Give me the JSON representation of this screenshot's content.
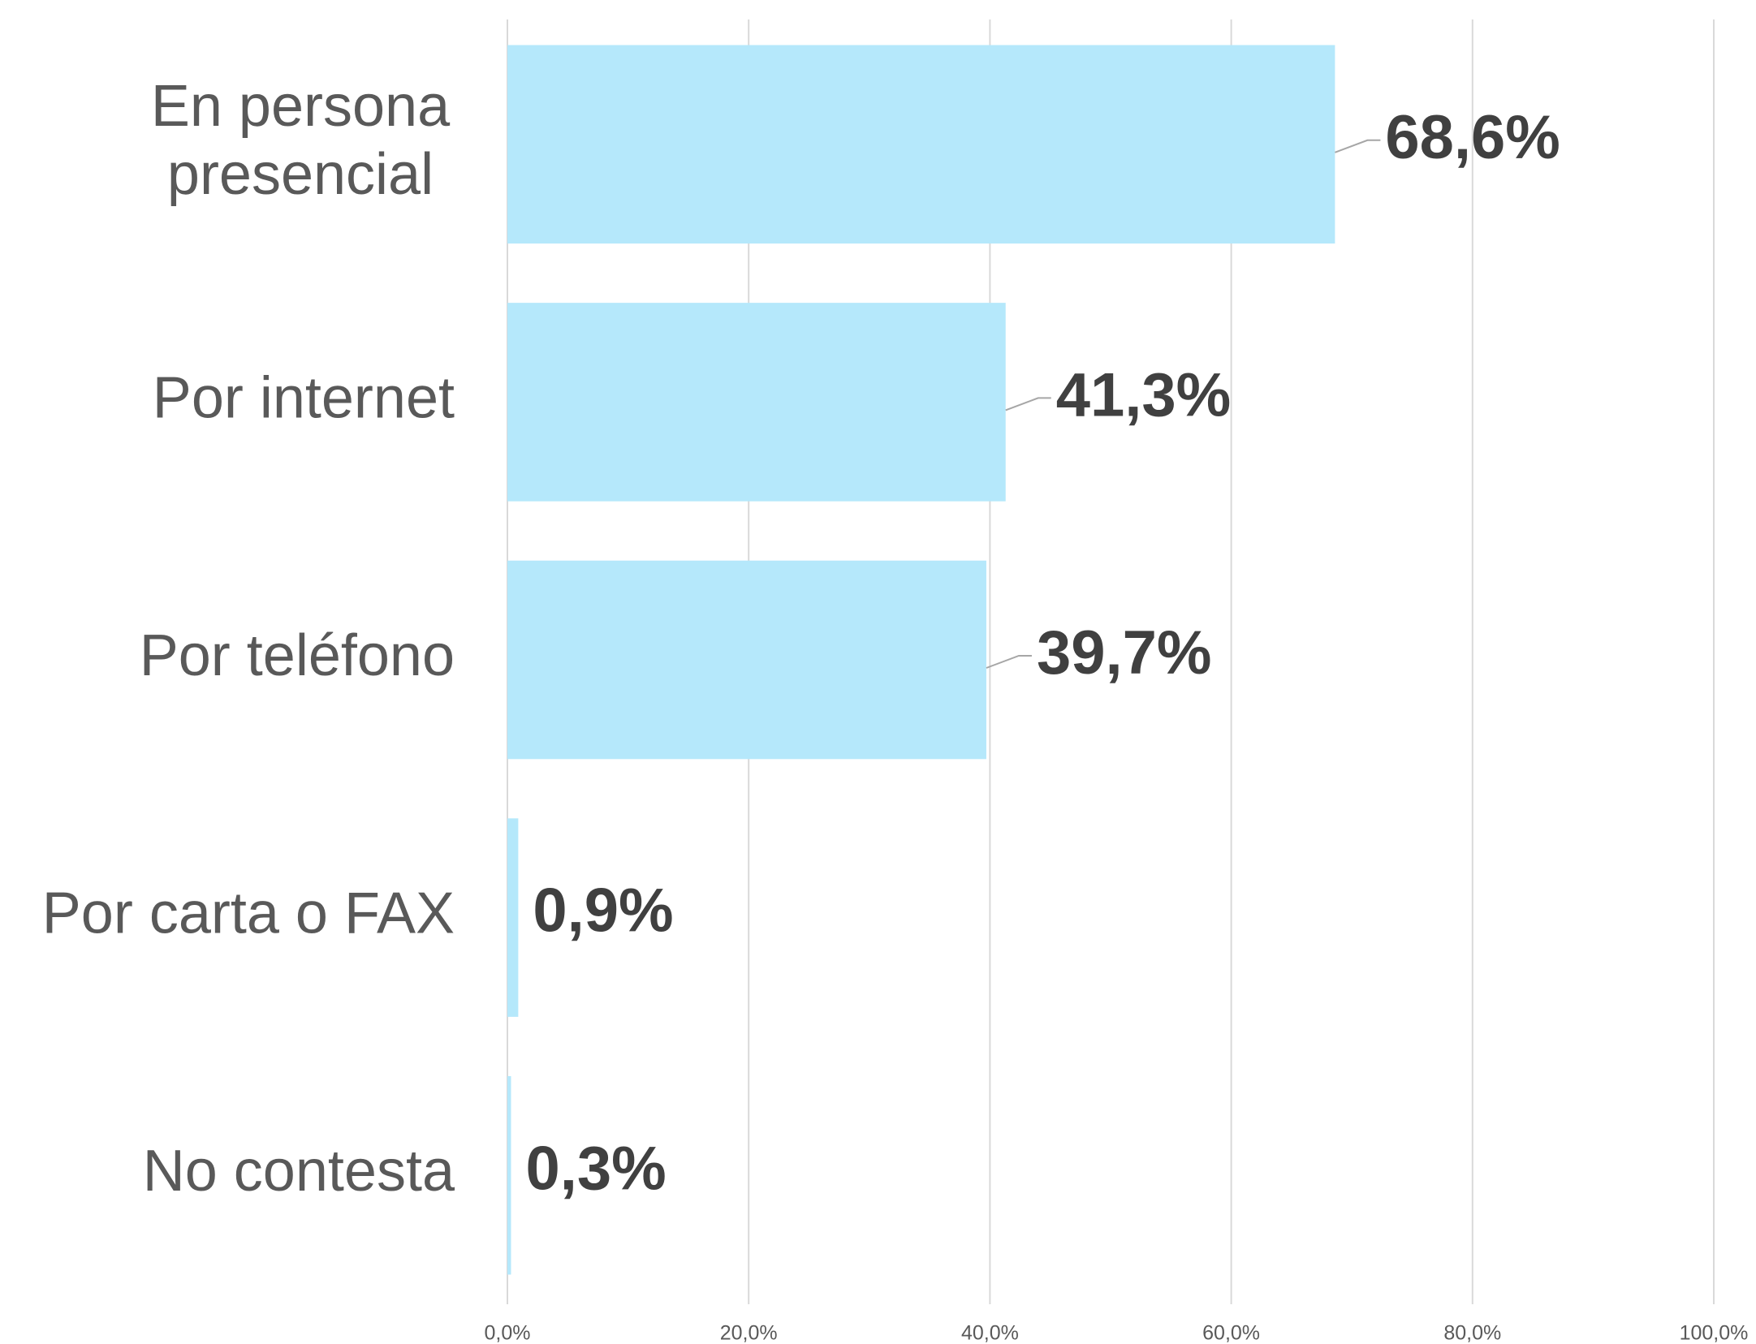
{
  "chart_data": {
    "type": "bar",
    "orientation": "horizontal",
    "categories": [
      "En persona presencial",
      "Por internet",
      "Por teléfono",
      "Por carta o FAX",
      "No contesta"
    ],
    "values": [
      68.6,
      41.3,
      39.7,
      0.9,
      0.3
    ],
    "value_labels": [
      "68,6%",
      "41,3%",
      "39,7%",
      "0,9%",
      "0,3%"
    ],
    "color": "#b5e8fb",
    "xlim": [
      0,
      100
    ],
    "xticks": [
      {
        "value": 0,
        "label": "0,0%"
      },
      {
        "value": 20,
        "label": "20,0%"
      },
      {
        "value": 40,
        "label": "40,0%"
      },
      {
        "value": 60,
        "label": "60,0%"
      },
      {
        "value": 80,
        "label": "80,0%"
      },
      {
        "value": 100,
        "label": "100,0%"
      }
    ],
    "grid": true
  }
}
